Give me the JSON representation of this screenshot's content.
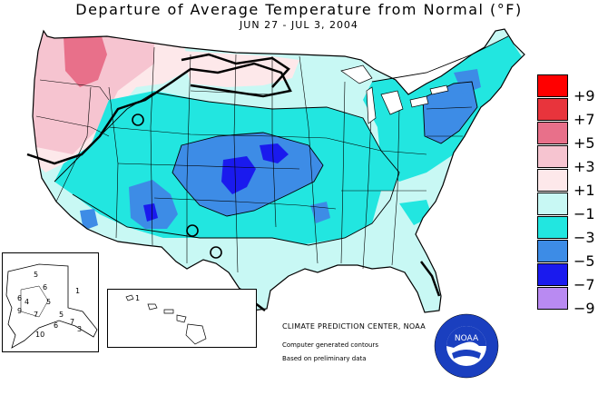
{
  "title": "Departure of Average Temperature from Normal (°F)",
  "subtitle": "JUN 27 - JUL  3, 2004",
  "legend": {
    "items": [
      {
        "label": "+9",
        "color": "#ff0000"
      },
      {
        "label": "+7",
        "color": "#e8343c"
      },
      {
        "label": "+5",
        "color": "#e8708a"
      },
      {
        "label": "+3",
        "color": "#f6c4d0"
      },
      {
        "label": "+1",
        "color": "#fde8ea"
      },
      {
        "label": "−1",
        "color": "#c8f8f4"
      },
      {
        "label": "−3",
        "color": "#22e6e0"
      },
      {
        "label": "−5",
        "color": "#3d8ce6"
      },
      {
        "label": "−7",
        "color": "#1a1aee"
      },
      {
        "label": "−9",
        "color": "#b98af2"
      }
    ]
  },
  "alaska_labels": [
    "5",
    "1",
    "6",
    "6",
    "5",
    "4",
    "9",
    "7",
    "5",
    "10",
    "3",
    "7",
    "6"
  ],
  "hawaii_labels": [
    "1"
  ],
  "credits": {
    "main": "CLIMATE PREDICTION CENTER, NOAA",
    "line1": "Computer generated contours",
    "line2": "Based on preliminary data"
  },
  "logo": {
    "text": "NOAA"
  }
}
